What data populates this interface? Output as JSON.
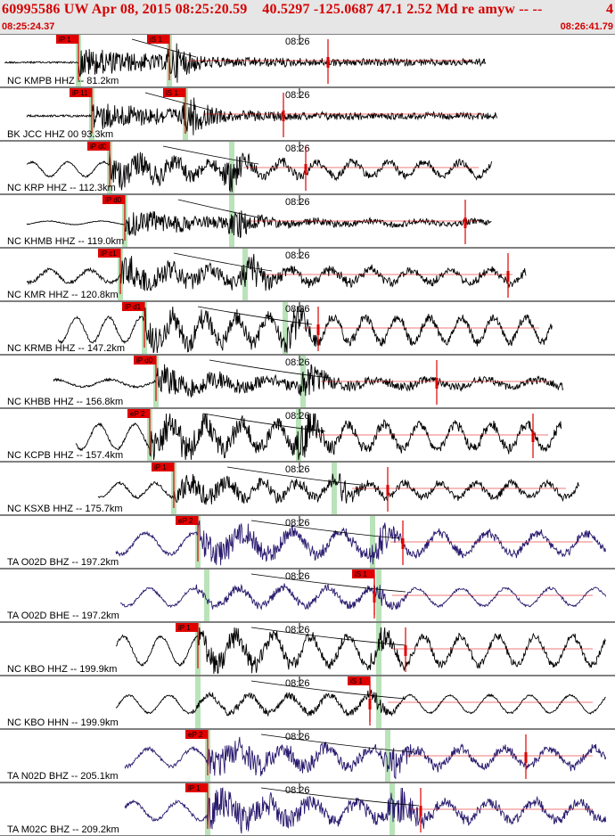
{
  "header": {
    "title": "60995586 UW Apr 08, 2015 08:25:20.59    40.5297 -125.0687 47.1 2.52 Md re amyw -- --",
    "page_number": "4",
    "start_time": "08:25:24.37",
    "end_time": "08:26:41.79"
  },
  "colors": {
    "header_text": "#d40000",
    "trace_nc": "#000000",
    "trace_ta": "#2a1a6e",
    "pick": "#e00000",
    "window": "#a8dca8",
    "theory_curve": "#000000"
  },
  "chart_data": {
    "type": "seismogram_section",
    "time_window": [
      "08:25:24.37",
      "08:26:41.79"
    ],
    "minute_mark_label": "08:26",
    "traces": [
      {
        "label": "NC KMPB HHZ -- 81.2km",
        "network": "NC",
        "distance_km": 81.2,
        "picks": [
          "iP 1",
          "iS 1"
        ]
      },
      {
        "label": "BK JCC HHZ 00 93.3km",
        "network": "BK",
        "distance_km": 93.3,
        "picks": [
          "iP 11",
          "iS 1"
        ]
      },
      {
        "label": "NC KRP HHZ -- 112.3km",
        "network": "NC",
        "distance_km": 112.3,
        "picks": [
          "iP d0"
        ]
      },
      {
        "label": "NC KHMB HHZ -- 119.0km",
        "network": "NC",
        "distance_km": 119.0,
        "picks": [
          "iP d0"
        ]
      },
      {
        "label": "NC KMR HHZ -- 120.8km",
        "network": "NC",
        "distance_km": 120.8,
        "picks": [
          "iP c1"
        ]
      },
      {
        "label": "NC KRMB HHZ -- 147.2km",
        "network": "NC",
        "distance_km": 147.2,
        "picks": [
          "iP d1"
        ]
      },
      {
        "label": "NC KHBB HHZ -- 156.8km",
        "network": "NC",
        "distance_km": 156.8,
        "picks": [
          "iP d0"
        ]
      },
      {
        "label": "NC KCPB HHZ -- 157.4km",
        "network": "NC",
        "distance_km": 157.4,
        "picks": [
          "eP 2"
        ]
      },
      {
        "label": "NC KSXB HHZ -- 175.7km",
        "network": "NC",
        "distance_km": 175.7,
        "picks": [
          "iP 1"
        ]
      },
      {
        "label": "TA O02D BHZ -- 197.2km",
        "network": "TA",
        "distance_km": 197.2,
        "picks": [
          "eP 2"
        ]
      },
      {
        "label": "TA O02D BHE -- 197.2km",
        "network": "TA",
        "distance_km": 197.2,
        "picks": [
          "iS 1"
        ]
      },
      {
        "label": "NC KBO HHZ -- 199.9km",
        "network": "NC",
        "distance_km": 199.9,
        "picks": [
          "iP 1"
        ]
      },
      {
        "label": "NC KBO HHN -- 199.9km",
        "network": "NC",
        "distance_km": 199.9,
        "picks": [
          "iS 1"
        ]
      },
      {
        "label": "TA N02D BHZ -- 205.1km",
        "network": "TA",
        "distance_km": 205.1,
        "picks": [
          "eP 2"
        ]
      },
      {
        "label": "TA M02C BHZ -- 209.2km",
        "network": "TA",
        "distance_km": 209.2,
        "picks": [
          "iP 1"
        ]
      }
    ]
  }
}
